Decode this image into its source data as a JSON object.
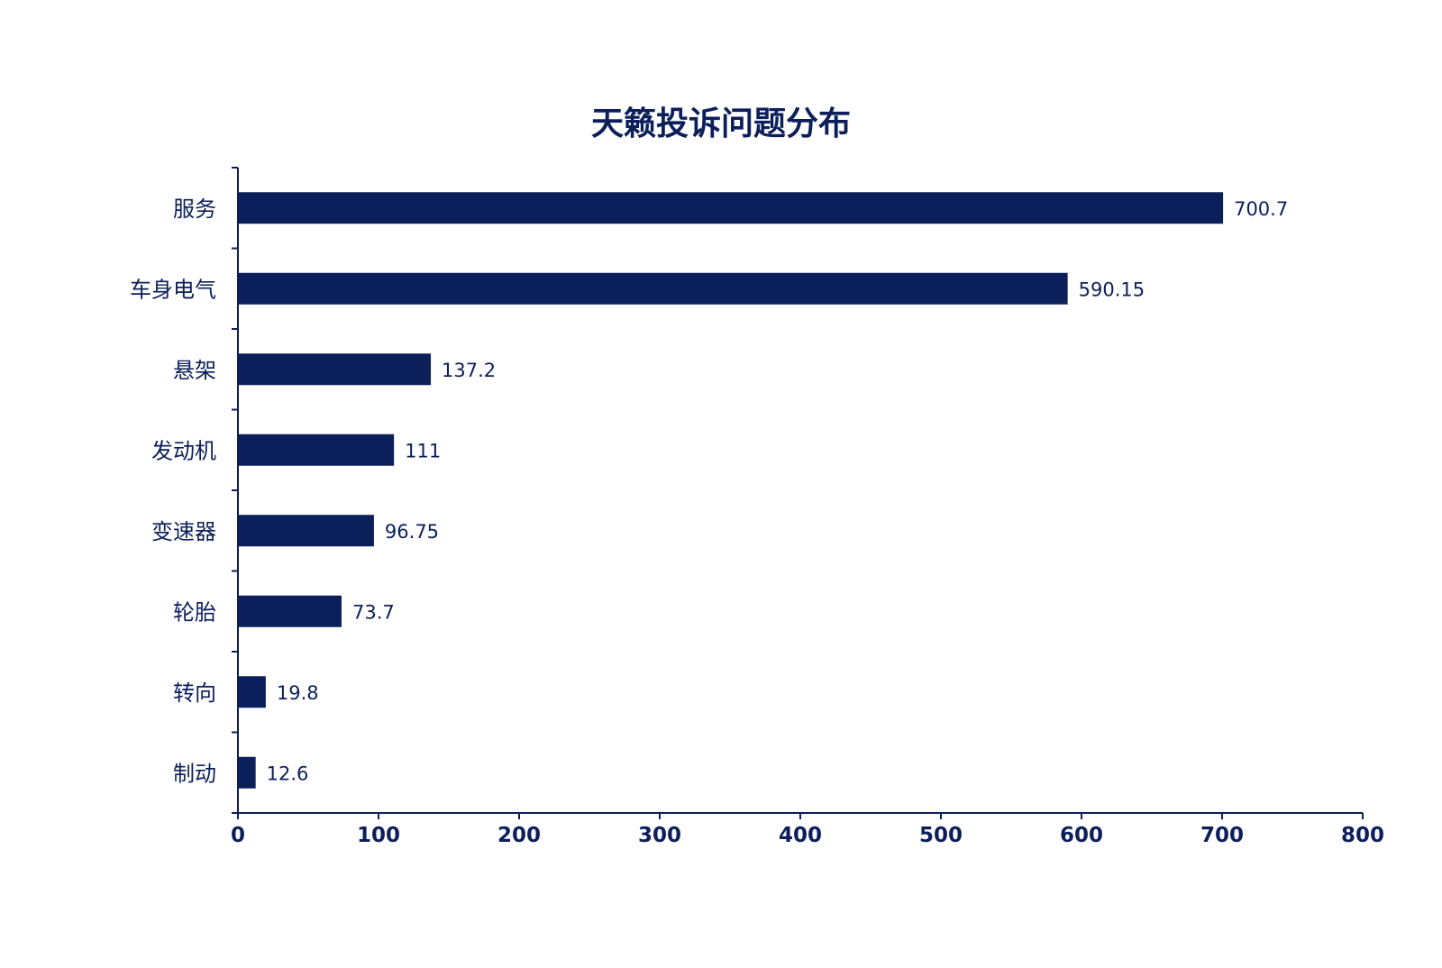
{
  "colors": {
    "bar": "#0b1f5b",
    "axis": "#0c1f5a",
    "text": "#0c1f5a"
  },
  "chart_data": {
    "type": "bar",
    "orientation": "horizontal",
    "title": "天籁投诉问题分布",
    "xlabel": "",
    "ylabel": "",
    "categories": [
      "服务",
      "车身电气",
      "悬架",
      "发动机",
      "变速器",
      "轮胎",
      "转向",
      "制动"
    ],
    "values": [
      700.7,
      590.15,
      137.2,
      111,
      96.75,
      73.7,
      19.8,
      12.6
    ],
    "value_labels": [
      "700.7",
      "590.15",
      "137.2",
      "111",
      "96.75",
      "73.7",
      "19.8",
      "12.6"
    ],
    "xlim": [
      0,
      800
    ],
    "xticks": [
      0,
      100,
      200,
      300,
      400,
      500,
      600,
      700,
      800
    ],
    "grid": false,
    "legend": "none"
  }
}
